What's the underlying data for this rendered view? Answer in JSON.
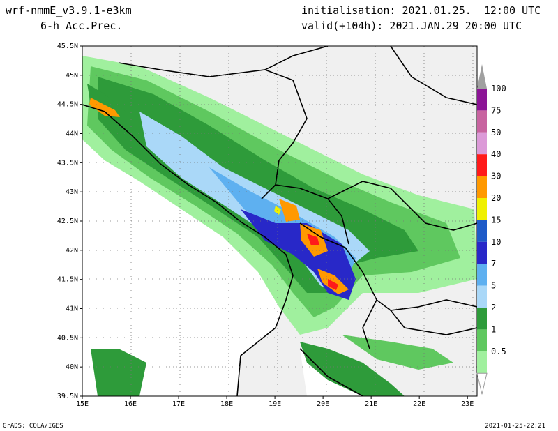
{
  "header": {
    "model": "wrf-nmmE_v3.9.1-e3km",
    "field": "6-h Acc.Prec.",
    "init": "initialisation: 2021.01.25.  12:00 UTC",
    "valid": "valid(+104h): 2021.JAN.29 20:00 UTC"
  },
  "footer": {
    "credit": "GrADS: COLA/IGES",
    "stamp": "2021-01-25-22:21"
  },
  "map": {
    "lon_range": [
      15,
      23.2
    ],
    "lat_range": [
      39.5,
      45.5
    ],
    "lon_ticks": [
      "15E",
      "16E",
      "17E",
      "18E",
      "19E",
      "20E",
      "21E",
      "22E",
      "23E"
    ],
    "lat_ticks": [
      "45.5N",
      "45N",
      "44.5N",
      "44N",
      "43.5N",
      "43N",
      "42.5N",
      "42N",
      "41.5N",
      "41N",
      "40.5N",
      "40N",
      "39.5N"
    ],
    "land_color": "#f0f0f0",
    "grid": "dotted"
  },
  "legend": {
    "levels": [
      "0.5",
      "1",
      "2",
      "5",
      "7",
      "10",
      "15",
      "20",
      "30",
      "40",
      "50",
      "75",
      "100"
    ],
    "colors": [
      "#a0f09e",
      "#5fc85f",
      "#2e9b3a",
      "#aad8f8",
      "#5eb0f0",
      "#2828c8",
      "#1e5ac8",
      "#f0f000",
      "#ff9900",
      "#ff1a1a",
      "#dc9ad8",
      "#c864a0",
      "#8c1496"
    ],
    "top_color": "#a0a0a0"
  }
}
